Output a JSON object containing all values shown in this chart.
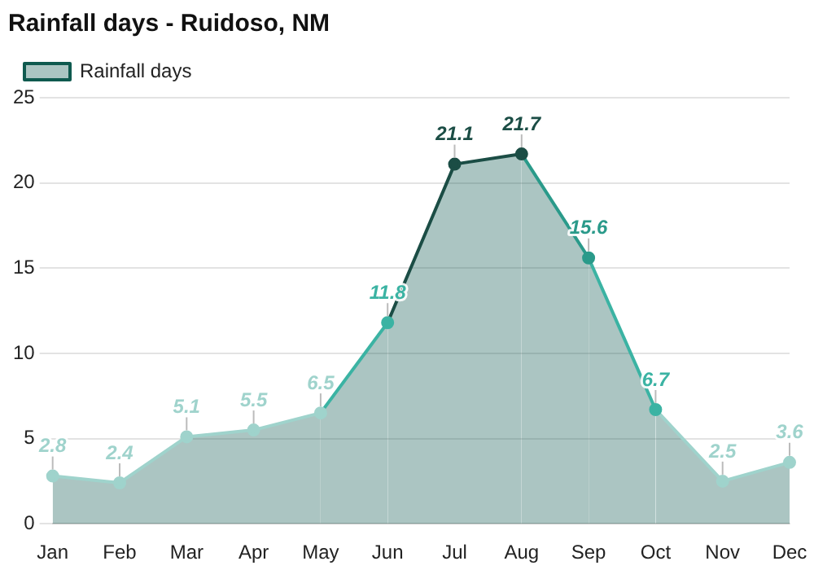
{
  "chart_data": {
    "type": "area",
    "title": "Rainfall days - Ruidoso, NM",
    "categories": [
      "Jan",
      "Feb",
      "Mar",
      "Apr",
      "May",
      "Jun",
      "Jul",
      "Aug",
      "Sep",
      "Oct",
      "Nov",
      "Dec"
    ],
    "series": [
      {
        "name": "Rainfall days",
        "color": "#0f5a4f",
        "colors": [
          "#9fd3cc",
          "#9fd3cc",
          "#9fd3cc",
          "#9fd3cc",
          "#9fd3cc",
          "#3bb3a3",
          "#1b4d45",
          "#1b4d45",
          "#2a9a8a",
          "#3bb3a3",
          "#9fd3cc",
          "#9fd3cc"
        ],
        "values": [
          2.8,
          2.4,
          5.1,
          5.5,
          6.5,
          11.8,
          21.1,
          21.7,
          15.6,
          6.7,
          2.5,
          3.6
        ]
      }
    ],
    "ylim": [
      0,
      25
    ],
    "yticks": [
      0,
      5,
      10,
      15,
      20,
      25
    ],
    "grid": "y",
    "legend": "top left",
    "marker": "circle",
    "line_style": "solid",
    "data_labels": true
  }
}
